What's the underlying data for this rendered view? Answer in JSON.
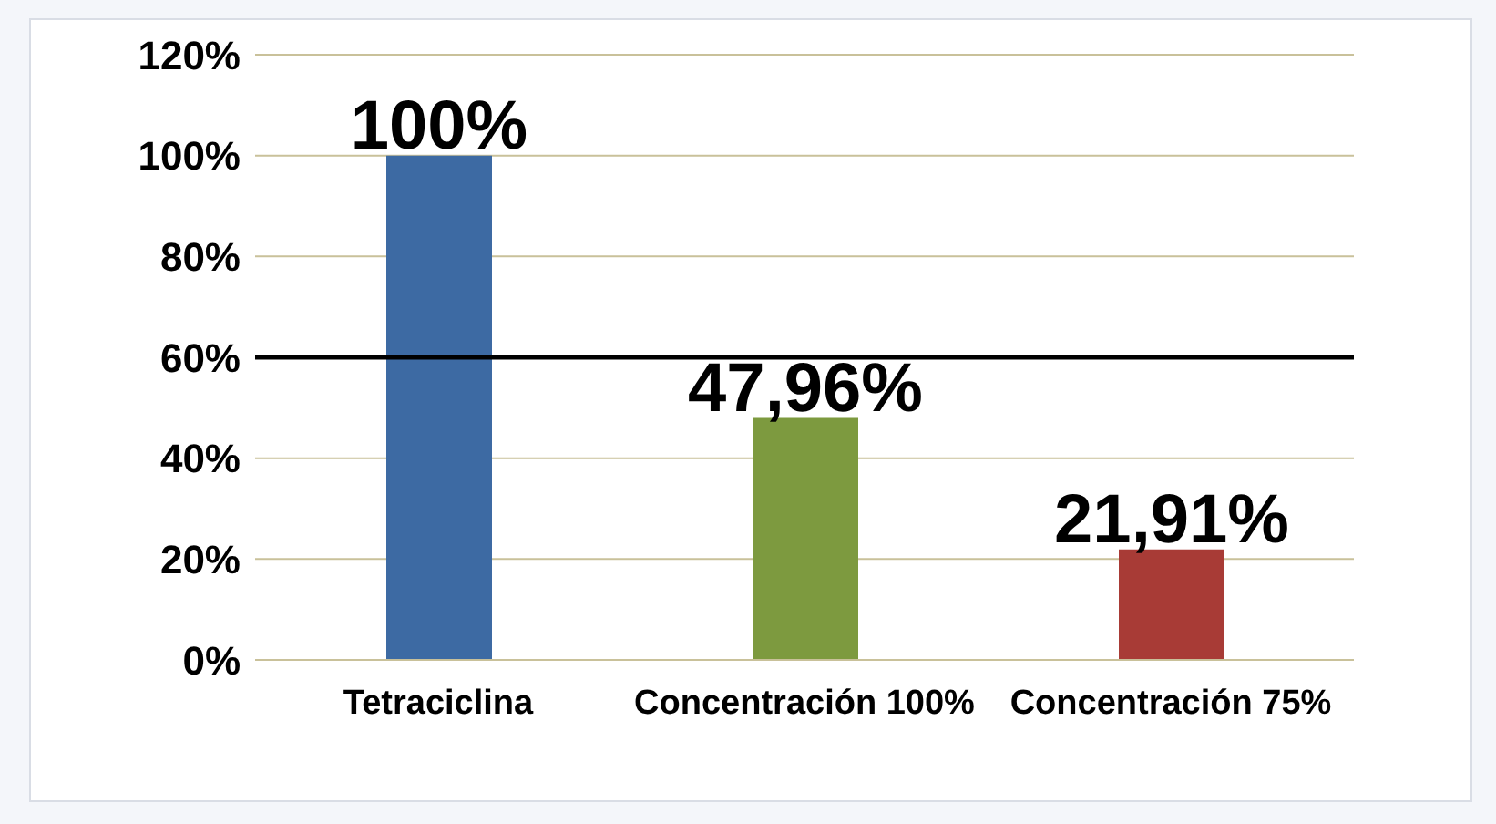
{
  "chart_data": {
    "type": "bar",
    "categories": [
      "Tetraciclina",
      "Concentración 100%",
      "Concentración 75%"
    ],
    "values": [
      100,
      47.96,
      21.91
    ],
    "colors": [
      "#3d6aa3",
      "#7d9a3f",
      "#a83b36"
    ],
    "value_labels": [
      "100%",
      "47,96%",
      "21,91%"
    ],
    "ylim": [
      0,
      120
    ],
    "yticks": [
      {
        "value": 0,
        "label": "0%"
      },
      {
        "value": 20,
        "label": "20%"
      },
      {
        "value": 40,
        "label": "40%"
      },
      {
        "value": 60,
        "label": "60%"
      },
      {
        "value": 80,
        "label": "80%"
      },
      {
        "value": 100,
        "label": "100%"
      },
      {
        "value": 120,
        "label": "120%"
      }
    ],
    "grid": "y",
    "ref_lines": [
      {
        "axis": "y",
        "value": 60,
        "color": "#000000"
      }
    ]
  }
}
